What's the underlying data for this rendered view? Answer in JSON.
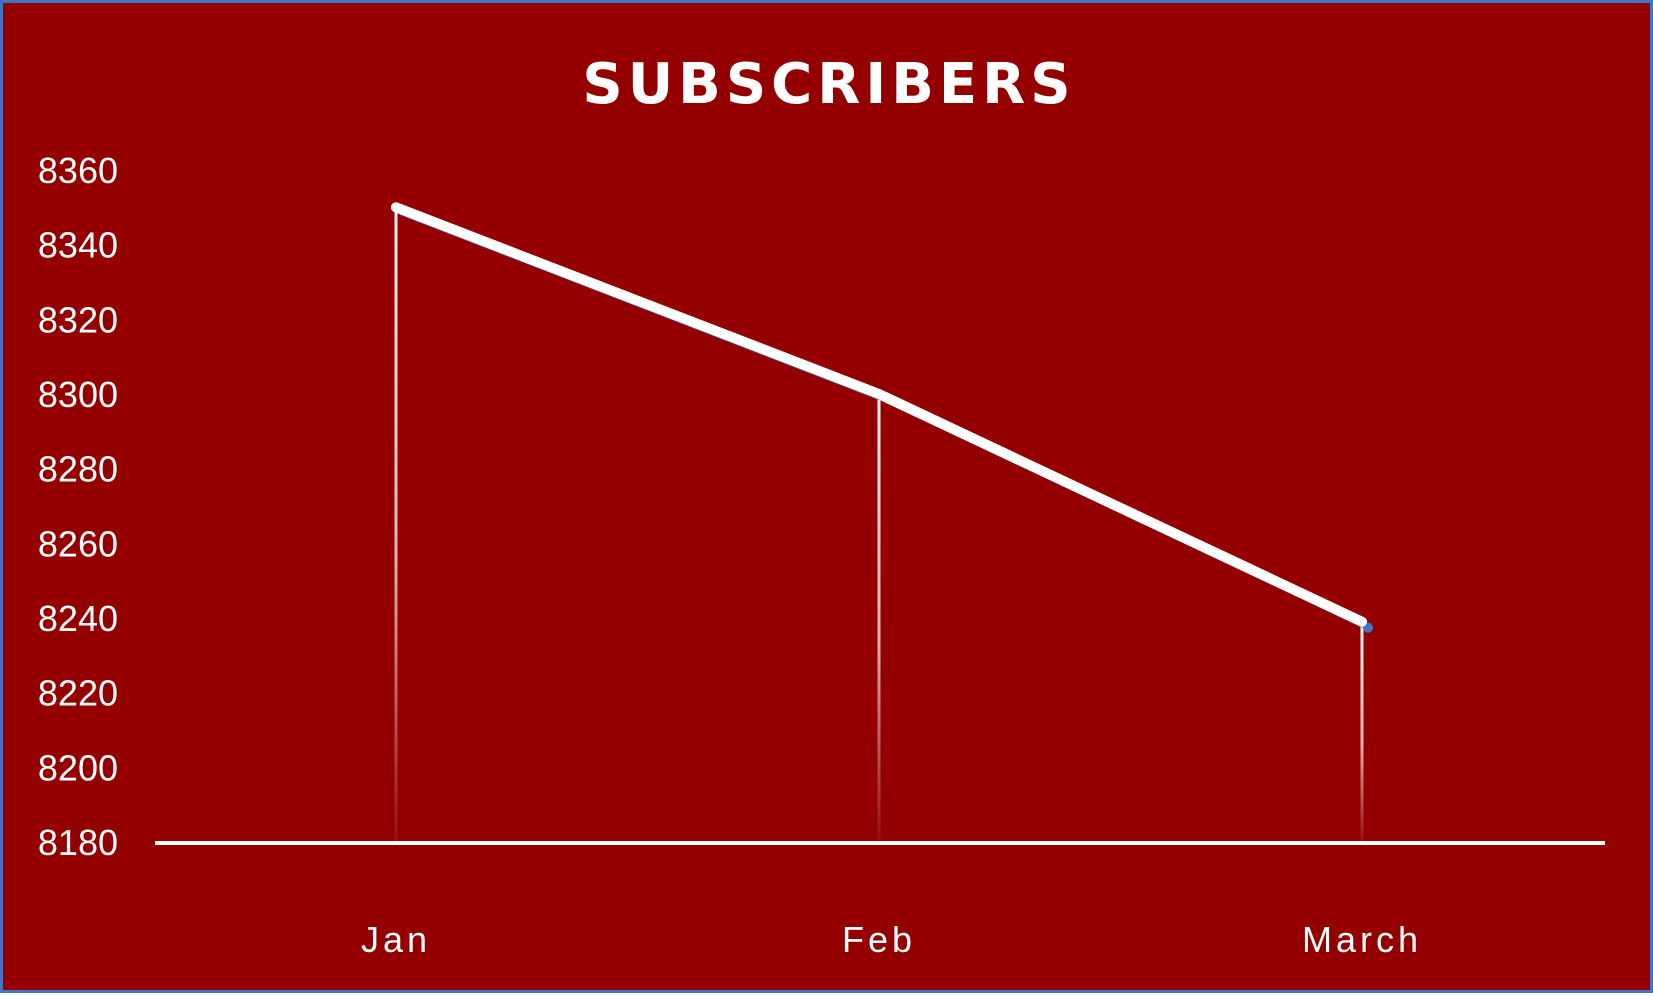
{
  "chart_data": {
    "type": "line",
    "title": "SUBSCRIBERS",
    "categories": [
      "Jan",
      "Feb",
      "March"
    ],
    "series": [
      {
        "values": [
          8350,
          8300,
          8239
        ]
      }
    ],
    "yticks": [
      8360,
      8340,
      8320,
      8300,
      8280,
      8260,
      8240,
      8220,
      8200,
      8180
    ],
    "ylim": [
      8180,
      8360
    ],
    "grid": false,
    "drop_lines": true,
    "colors": {
      "background": "#940000",
      "border": "#4472C4",
      "line": "#ffffff",
      "line_shadow": "#4472C4",
      "text": "#ffffff"
    }
  }
}
